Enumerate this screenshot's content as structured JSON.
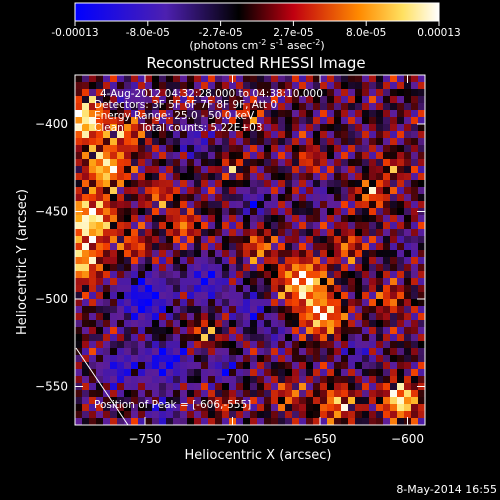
{
  "colorbar": {
    "tick_labels": [
      "-0.00013",
      "-8.0e-05",
      "-2.7e-05",
      "2.7e-05",
      "8.0e-05",
      "0.00013"
    ],
    "min": -0.00013,
    "max": 0.00013,
    "unit_label": "(photons cm",
    "unit_sup1": "-2",
    "unit_mid": " s",
    "unit_sup2": "-1",
    "unit_mid2": " asec",
    "unit_sup3": "-2",
    "unit_close": ")"
  },
  "footer": {
    "date": "8-May-2014 16:55"
  },
  "chart_data": {
    "type": "heatmap",
    "title": "Reconstructed RHESSI Image",
    "xlabel": "Heliocentric X (arcsec)",
    "ylabel": "Heliocentric Y (arcsec)",
    "xlim": [
      -790,
      -590
    ],
    "ylim": [
      -572,
      -372
    ],
    "x_ticks": [
      -750,
      -700,
      -650,
      -600
    ],
    "y_ticks": [
      -400,
      -450,
      -500,
      -550
    ],
    "x_tick_labels": [
      "−750",
      "−700",
      "−650",
      "−600"
    ],
    "y_tick_labels": [
      "−400",
      "−450",
      "−500",
      "−550"
    ],
    "colorscale": [
      "#0000ff",
      "#5a1a9e",
      "#000000",
      "#b0101a",
      "#ff7a00",
      "#ffe080",
      "#ffffff"
    ],
    "annotations": [
      "4-Aug-2012 04:32:28.000 to 04:38:10.000",
      "Detectors: 3F 5F 6F 7F 8F 9F, Att 0",
      "Energy Range: 25.0 - 50.0 keV",
      "Clean     Total counts: 5.22E+03"
    ],
    "peak_label": "Position of Peak = [-606,-555]",
    "peak": {
      "x": -606,
      "y": -555
    },
    "grid": false
  }
}
